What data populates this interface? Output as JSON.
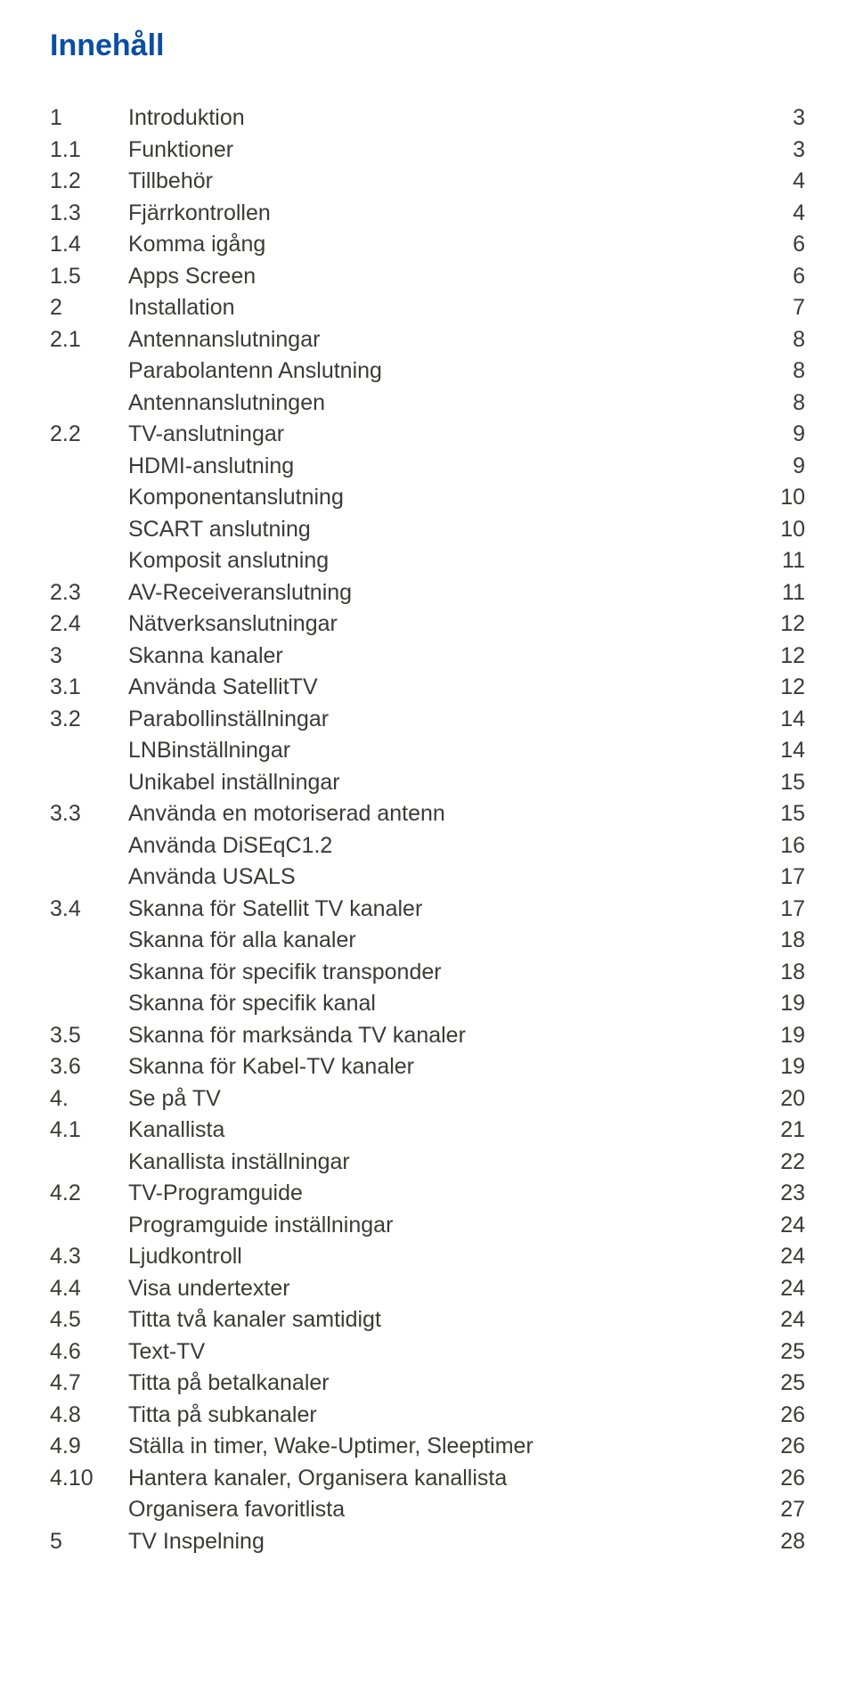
{
  "title": "Innehåll",
  "title_color": "#0a4ea2",
  "text_color": "#3a3a38",
  "entries": [
    {
      "num": "1",
      "label": "Introduktion",
      "page": "3"
    },
    {
      "num": "1.1",
      "label": "Funktioner",
      "page": "3"
    },
    {
      "num": "1.2",
      "label": "Tillbehör",
      "page": "4"
    },
    {
      "num": "1.3",
      "label": "Fjärrkontrollen",
      "page": "4"
    },
    {
      "num": "1.4",
      "label": "Komma igång",
      "page": "6"
    },
    {
      "num": "1.5",
      "label": "Apps Screen",
      "page": "6"
    },
    {
      "num": "2",
      "label": "Installation",
      "page": "7"
    },
    {
      "num": "2.1",
      "label": "Antennanslutningar",
      "page": "8"
    },
    {
      "num": "",
      "label": "Parabolantenn Anslutning",
      "page": "8"
    },
    {
      "num": "",
      "label": "Antennanslutningen",
      "page": "8"
    },
    {
      "num": "2.2",
      "label": "TV-anslutningar",
      "page": "9"
    },
    {
      "num": "",
      "label": "HDMI-anslutning",
      "page": "9"
    },
    {
      "num": "",
      "label": "Komponentanslutning",
      "page": "10"
    },
    {
      "num": "",
      "label": "SCART anslutning",
      "page": "10"
    },
    {
      "num": "",
      "label": "Komposit anslutning",
      "page": "11"
    },
    {
      "num": "2.3",
      "label": "AV-Receiveranslutning",
      "page": "11"
    },
    {
      "num": "2.4",
      "label": "Nätverksanslutningar",
      "page": "12"
    },
    {
      "num": "3",
      "label": "Skanna kanaler",
      "page": "12"
    },
    {
      "num": "3.1",
      "label": "Använda SatellitTV",
      "page": "12"
    },
    {
      "num": "3.2",
      "label": "Parabollinställningar",
      "page": "14"
    },
    {
      "num": "",
      "label": "LNBinställningar",
      "page": "14"
    },
    {
      "num": "",
      "label": "Unikabel inställningar",
      "page": "15"
    },
    {
      "num": "3.3",
      "label": "Använda en motoriserad antenn",
      "page": "15"
    },
    {
      "num": "",
      "label": "Använda DiSEqC1.2",
      "page": "16"
    },
    {
      "num": "",
      "label": "Använda USALS",
      "page": "17"
    },
    {
      "num": "3.4",
      "label": "Skanna för Satellit TV kanaler",
      "page": "17"
    },
    {
      "num": "",
      "label": "Skanna för alla kanaler",
      "page": "18"
    },
    {
      "num": "",
      "label": "Skanna för specifik transponder",
      "page": "18"
    },
    {
      "num": "",
      "label": "Skanna för specifik kanal",
      "page": "19"
    },
    {
      "num": "3.5",
      "label": " Skanna för marksända TV kanaler",
      "page": "19"
    },
    {
      "num": "3.6",
      "label": "Skanna för Kabel-TV kanaler",
      "page": "19"
    },
    {
      "num": "4.",
      "label": "Se på TV",
      "page": "20"
    },
    {
      "num": "4.1",
      "label": "Kanallista",
      "page": "21"
    },
    {
      "num": "",
      "label": "Kanallista inställningar",
      "page": "22"
    },
    {
      "num": "4.2",
      "label": "TV-Programguide",
      "page": "23"
    },
    {
      "num": "",
      "label": "Programguide inställningar",
      "page": "24"
    },
    {
      "num": "4.3",
      "label": "Ljudkontroll",
      "page": "24"
    },
    {
      "num": "4.4",
      "label": "Visa undertexter",
      "page": "24"
    },
    {
      "num": "4.5",
      "label": "Titta två kanaler samtidigt",
      "page": "24"
    },
    {
      "num": "4.6",
      "label": "Text-TV",
      "page": "25"
    },
    {
      "num": "4.7",
      "label": "Titta på betalkanaler",
      "page": "25"
    },
    {
      "num": "4.8",
      "label": "Titta på subkanaler",
      "page": "26"
    },
    {
      "num": "4.9",
      "label": "Ställa in timer, Wake-Uptimer, Sleeptimer",
      "page": "26"
    },
    {
      "num": "4.10",
      "label": "Hantera kanaler, Organisera kanallista",
      "page": "26"
    },
    {
      "num": "",
      "label": "Organisera favoritlista",
      "page": "27"
    },
    {
      "num": "5",
      "label": "TV Inspelning",
      "page": "28"
    }
  ]
}
